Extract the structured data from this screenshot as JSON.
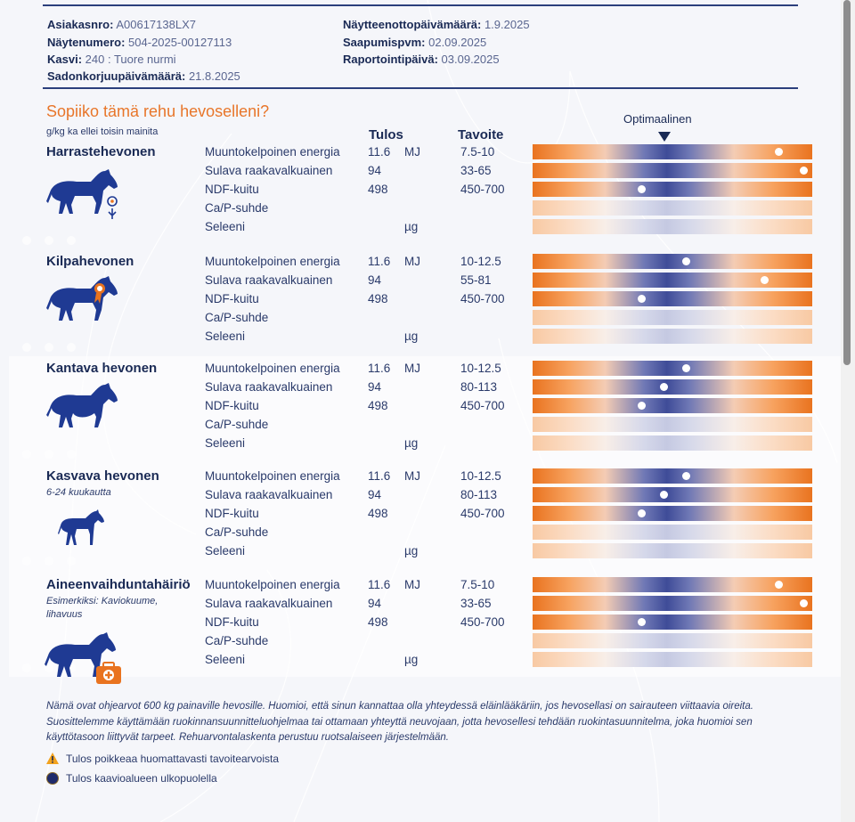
{
  "meta": {
    "customer_label": "Asiakasnro:",
    "customer_value": "A00617138LX7",
    "sample_label": "Näytenumero:",
    "sample_value": "504-2025-00127113",
    "crop_label": "Kasvi:",
    "crop_value": "240 : Tuore nurmi",
    "harvest_label": "Sadonkorjuupäivämäärä:",
    "harvest_value": "21.8.2025",
    "sampling_label": "Näytteenottopäivämäärä:",
    "sampling_value": "1.9.2025",
    "arrival_label": "Saapumispvm:",
    "arrival_value": "02.09.2025",
    "report_label": "Raportointipäivä:",
    "report_value": "03.09.2025"
  },
  "question": "Sopiiko tämä rehu hevoselleni?",
  "unit_note": "g/kg ka ellei toisin mainita",
  "headers": {
    "result": "Tulos",
    "target": "Tavoite",
    "optimal": "Optimaalinen"
  },
  "colors": {
    "orange": "#e9731f",
    "navy": "#3f4c98",
    "text": "#1a2a55"
  },
  "sections": [
    {
      "name": "Harrastehevonen",
      "subtitle": "",
      "icon": "leisure-horse-icon",
      "rows": [
        {
          "label": "Muuntokelpoinen energia",
          "value": "11.6",
          "unit": "MJ",
          "target": "7.5-10",
          "marker": 0.88
        },
        {
          "label": "Sulava raakavalkuainen",
          "value": "94",
          "unit": "",
          "target": "33-65",
          "marker": 0.97
        },
        {
          "label": "NDF-kuitu",
          "value": "498",
          "unit": "",
          "target": "450-700",
          "marker": 0.39
        },
        {
          "label": "Ca/P-suhde",
          "value": "",
          "unit": "",
          "target": "",
          "marker": null
        },
        {
          "label": "Seleeni",
          "value": "",
          "unit": "µg",
          "target": "",
          "marker": null
        }
      ]
    },
    {
      "name": "Kilpahevonen",
      "subtitle": "",
      "icon": "competition-horse-icon",
      "rows": [
        {
          "label": "Muuntokelpoinen energia",
          "value": "11.6",
          "unit": "MJ",
          "target": "10-12.5",
          "marker": 0.55
        },
        {
          "label": "Sulava raakavalkuainen",
          "value": "94",
          "unit": "",
          "target": "55-81",
          "marker": 0.83
        },
        {
          "label": "NDF-kuitu",
          "value": "498",
          "unit": "",
          "target": "450-700",
          "marker": 0.39
        },
        {
          "label": "Ca/P-suhde",
          "value": "",
          "unit": "",
          "target": "",
          "marker": null
        },
        {
          "label": "Seleeni",
          "value": "",
          "unit": "µg",
          "target": "",
          "marker": null
        }
      ]
    },
    {
      "name": "Kantava hevonen",
      "subtitle": "",
      "icon": "pregnant-horse-icon",
      "rows": [
        {
          "label": "Muuntokelpoinen energia",
          "value": "11.6",
          "unit": "MJ",
          "target": "10-12.5",
          "marker": 0.55
        },
        {
          "label": "Sulava raakavalkuainen",
          "value": "94",
          "unit": "",
          "target": "80-113",
          "marker": 0.47
        },
        {
          "label": "NDF-kuitu",
          "value": "498",
          "unit": "",
          "target": "450-700",
          "marker": 0.39
        },
        {
          "label": "Ca/P-suhde",
          "value": "",
          "unit": "",
          "target": "",
          "marker": null
        },
        {
          "label": "Seleeni",
          "value": "",
          "unit": "µg",
          "target": "",
          "marker": null
        }
      ]
    },
    {
      "name": "Kasvava hevonen",
      "subtitle": "6-24 kuukautta",
      "icon": "foal-icon",
      "rows": [
        {
          "label": "Muuntokelpoinen energia",
          "value": "11.6",
          "unit": "MJ",
          "target": "10-12.5",
          "marker": 0.55
        },
        {
          "label": "Sulava raakavalkuainen",
          "value": "94",
          "unit": "",
          "target": "80-113",
          "marker": 0.47
        },
        {
          "label": "NDF-kuitu",
          "value": "498",
          "unit": "",
          "target": "450-700",
          "marker": 0.39
        },
        {
          "label": "Ca/P-suhde",
          "value": "",
          "unit": "",
          "target": "",
          "marker": null
        },
        {
          "label": "Seleeni",
          "value": "",
          "unit": "µg",
          "target": "",
          "marker": null
        }
      ]
    },
    {
      "name": "Aineenvaihduntahäiriö",
      "subtitle": "Esimerkiksi: Kaviokuume, lihavuus",
      "icon": "medical-horse-icon",
      "rows": [
        {
          "label": "Muuntokelpoinen energia",
          "value": "11.6",
          "unit": "MJ",
          "target": "7.5-10",
          "marker": 0.88
        },
        {
          "label": "Sulava raakavalkuainen",
          "value": "94",
          "unit": "",
          "target": "33-65",
          "marker": 0.97
        },
        {
          "label": "NDF-kuitu",
          "value": "498",
          "unit": "",
          "target": "450-700",
          "marker": 0.39
        },
        {
          "label": "Ca/P-suhde",
          "value": "",
          "unit": "",
          "target": "",
          "marker": null
        },
        {
          "label": "Seleeni",
          "value": "",
          "unit": "µg",
          "target": "",
          "marker": null
        }
      ]
    }
  ],
  "footnote": "Nämä ovat ohjearvot 600 kg painaville hevosille. Huomioi, että sinun kannattaa olla yhteydessä eläinlääkäriin, jos hevosellasi on sairauteen viittaavia oireita. Suosittelemme käyttämään ruokinnansuunnitteluohjelmaa tai ottamaan yhteyttä neuvojaan, jotta hevosellesi tehdään ruokintasuunnitelma, joka huomioi sen käyttötasoon liittyvät tarpeet. Rehuarvontalaskenta perustuu ruotsalaiseen järjestelmään.",
  "legend": [
    {
      "icon": "warning-icon",
      "text": "Tulos poikkeaa huomattavasti tavoitearvoista"
    },
    {
      "icon": "dark-circle-icon",
      "text": "Tulos kaavioalueen ulkopuolella"
    }
  ]
}
